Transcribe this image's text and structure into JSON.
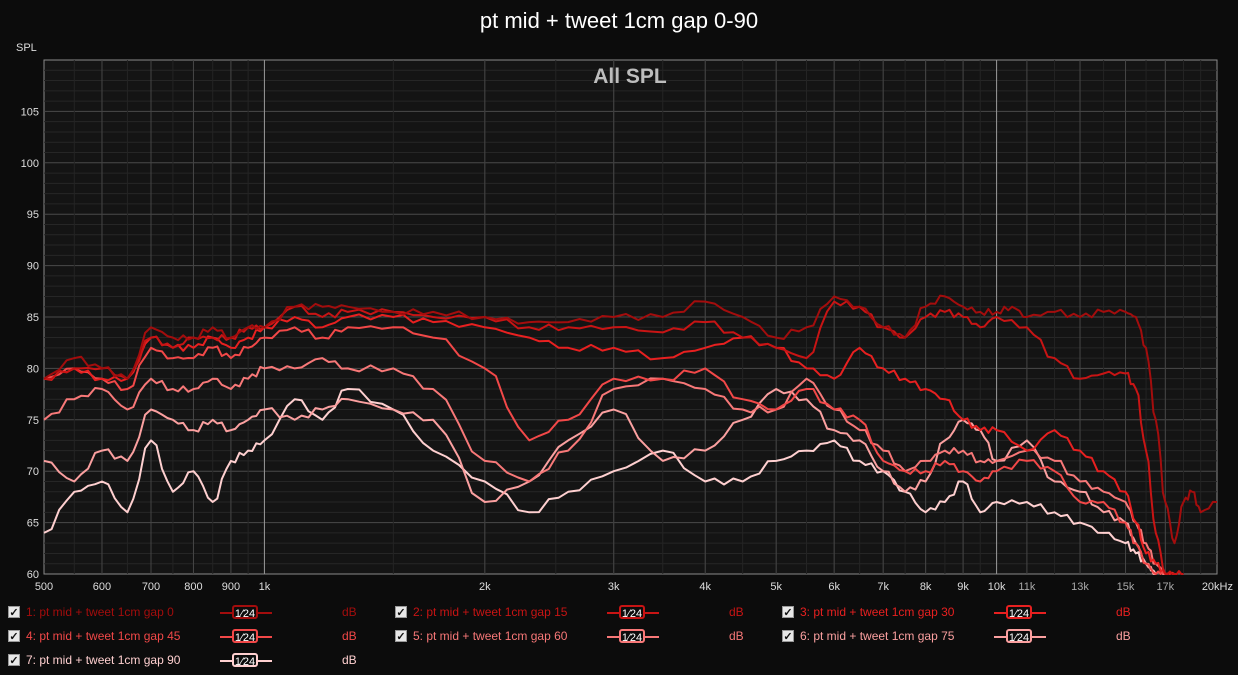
{
  "title": "pt mid + tweet 1cm gap 0-90",
  "y_axis_label": "SPL",
  "chart_data": {
    "type": "line",
    "title": "pt mid + tweet 1cm gap 0-90",
    "inner_title": "All SPL",
    "ylabel": "SPL",
    "x_scale": "log",
    "xlim": [
      500,
      20000
    ],
    "ylim": [
      60,
      110
    ],
    "y_ticks": [
      60,
      65,
      70,
      75,
      80,
      85,
      90,
      95,
      100,
      105
    ],
    "x_ticks": [
      {
        "v": 500,
        "label": "500"
      },
      {
        "v": 600,
        "label": "600"
      },
      {
        "v": 700,
        "label": "700"
      },
      {
        "v": 800,
        "label": "800"
      },
      {
        "v": 900,
        "label": "900"
      },
      {
        "v": 1000,
        "label": "1k"
      },
      {
        "v": 2000,
        "label": "2k"
      },
      {
        "v": 3000,
        "label": "3k"
      },
      {
        "v": 4000,
        "label": "4k"
      },
      {
        "v": 5000,
        "label": "5k"
      },
      {
        "v": 6000,
        "label": "6k"
      },
      {
        "v": 7000,
        "label": "7k"
      },
      {
        "v": 8000,
        "label": "8k"
      },
      {
        "v": 9000,
        "label": "9k"
      },
      {
        "v": 10000,
        "label": "10k"
      },
      {
        "v": 11000,
        "label": "11k"
      },
      {
        "v": 13000,
        "label": "13k"
      },
      {
        "v": 15000,
        "label": "15k"
      },
      {
        "v": 17000,
        "label": "17k"
      },
      {
        "v": 20000,
        "label": "20kHz"
      }
    ],
    "grid": true,
    "series": [
      {
        "name": "1: pt mid + tweet 1cm gap 0",
        "color": "#a30d0d",
        "x": [
          500,
          550,
          600,
          650,
          700,
          750,
          800,
          850,
          900,
          950,
          1000,
          1100,
          1200,
          1300,
          1500,
          1700,
          2000,
          2300,
          2600,
          3000,
          3500,
          4000,
          4500,
          5000,
          5500,
          6000,
          6500,
          7000,
          7500,
          8000,
          8500,
          9000,
          9500,
          10000,
          10500,
          11000,
          12000,
          13000,
          14000,
          15000,
          15500,
          16000,
          16500,
          17000,
          17500,
          18000,
          18500,
          19000,
          20000
        ],
        "y": [
          79,
          81,
          80,
          79,
          84,
          83,
          83,
          84,
          83,
          84,
          84,
          86,
          86,
          86,
          85.5,
          85.5,
          85,
          84.5,
          84.5,
          85,
          85,
          86.5,
          85,
          83,
          84,
          87,
          86,
          84,
          83,
          86,
          87,
          86,
          85.5,
          85.5,
          86,
          85,
          85.5,
          85,
          85.5,
          85.5,
          85,
          82,
          75,
          67,
          63,
          67,
          68,
          66,
          67
        ]
      },
      {
        "name": "2: pt mid + tweet 1cm gap 15",
        "color": "#c81414",
        "x": [
          500,
          550,
          600,
          650,
          700,
          750,
          800,
          850,
          900,
          950,
          1000,
          1100,
          1200,
          1300,
          1500,
          1700,
          2000,
          2300,
          2600,
          3000,
          3500,
          4000,
          4500,
          5000,
          5500,
          6000,
          6500,
          7000,
          7500,
          8000,
          8500,
          9000,
          9500,
          10000,
          11000,
          12000,
          13000,
          14000,
          15000,
          15500,
          16000,
          16500,
          17000,
          17500,
          18000
        ],
        "y": [
          79,
          80,
          80,
          79,
          83,
          82,
          83,
          83,
          83,
          84,
          84,
          86,
          85,
          85.5,
          85.5,
          85,
          85,
          84,
          84,
          84,
          83.5,
          84.5,
          83,
          82,
          81,
          86.5,
          86,
          84,
          83,
          85,
          85.5,
          85,
          84,
          85,
          84,
          81,
          79,
          79.5,
          79.5,
          78,
          72,
          64,
          60,
          60,
          60
        ]
      },
      {
        "name": "3: pt mid + tweet 1cm gap 30",
        "color": "#e82020",
        "x": [
          500,
          550,
          600,
          650,
          700,
          750,
          800,
          850,
          900,
          950,
          1000,
          1100,
          1200,
          1300,
          1500,
          1700,
          2000,
          2300,
          2600,
          3000,
          3500,
          4000,
          4500,
          5000,
          5500,
          6000,
          6500,
          7000,
          7500,
          8000,
          8500,
          9000,
          9500,
          10000,
          11000,
          12000,
          13000,
          14000,
          15000,
          15500,
          16000,
          16500,
          17000,
          17500
        ],
        "y": [
          79,
          80,
          79,
          79,
          83,
          82,
          82,
          83,
          82,
          83,
          84,
          85,
          84,
          85,
          85,
          84.5,
          84,
          83,
          82,
          82,
          81,
          82,
          83,
          82,
          80,
          79,
          82,
          80,
          79,
          78,
          77,
          75,
          74,
          74,
          72,
          74,
          72,
          70,
          68,
          65,
          62,
          61,
          60,
          60
        ]
      },
      {
        "name": "4: pt mid + tweet 1cm gap 45",
        "color": "#f24848",
        "x": [
          500,
          550,
          600,
          650,
          700,
          750,
          800,
          850,
          900,
          950,
          1000,
          1100,
          1200,
          1300,
          1500,
          1700,
          2000,
          2300,
          2600,
          3000,
          3500,
          4000,
          4500,
          5000,
          5500,
          6000,
          6500,
          7000,
          7500,
          8000,
          8500,
          9000,
          9500,
          10000,
          11000,
          12000,
          13000,
          14000,
          15000,
          15500,
          16000,
          16500,
          17000
        ],
        "y": [
          79,
          80,
          79,
          78,
          82,
          81,
          81,
          82,
          81,
          82,
          83,
          84,
          83,
          84,
          84,
          83,
          80,
          73,
          75,
          79,
          79,
          80,
          77,
          76,
          78,
          76,
          75,
          71,
          70,
          70,
          71,
          70,
          69,
          70,
          71,
          70,
          67,
          67,
          65,
          63,
          61,
          60,
          60
        ]
      },
      {
        "name": "5: pt mid + tweet 1cm gap 60",
        "color": "#f87878",
        "x": [
          500,
          550,
          600,
          650,
          700,
          750,
          800,
          850,
          900,
          950,
          1000,
          1100,
          1200,
          1300,
          1500,
          1700,
          2000,
          2300,
          2600,
          3000,
          3500,
          4000,
          4500,
          5000,
          5500,
          6000,
          6500,
          7000,
          7500,
          8000,
          8500,
          9000,
          9500,
          10000,
          11000,
          12000,
          13000,
          14000,
          15000,
          15500,
          16000,
          16500,
          17000
        ],
        "y": [
          75,
          77,
          78,
          76,
          79,
          78,
          78,
          79,
          78,
          79,
          80,
          80,
          81,
          80,
          80,
          78,
          71,
          69,
          72,
          78,
          79,
          78,
          76,
          76,
          79,
          76,
          74,
          72,
          70,
          71,
          72,
          72,
          71,
          71,
          72,
          71,
          69,
          68,
          67,
          65,
          63,
          61,
          60
        ]
      },
      {
        "name": "6: pt mid + tweet 1cm gap 75",
        "color": "#fba0a0",
        "x": [
          500,
          550,
          600,
          650,
          700,
          750,
          800,
          850,
          900,
          950,
          1000,
          1100,
          1200,
          1300,
          1500,
          1700,
          2000,
          2300,
          2600,
          3000,
          3500,
          4000,
          4500,
          5000,
          5500,
          6000,
          6500,
          7000,
          7500,
          8000,
          8500,
          9000,
          9500,
          10000,
          11000,
          12000,
          13000,
          14000,
          15000,
          15500,
          16000,
          16500
        ],
        "y": [
          71,
          69,
          72,
          71,
          76,
          75,
          74,
          75,
          74,
          75,
          76,
          75,
          76,
          77,
          76,
          75,
          67,
          69,
          73,
          76,
          71,
          72,
          75,
          78,
          77,
          74,
          73,
          70,
          68,
          69,
          73,
          75,
          74,
          71,
          73,
          69,
          68,
          66,
          65,
          63,
          61,
          60
        ]
      },
      {
        "name": "7: pt mid + tweet 1cm gap 90",
        "color": "#ffd0d0",
        "x": [
          500,
          550,
          600,
          650,
          700,
          750,
          800,
          850,
          900,
          950,
          1000,
          1100,
          1200,
          1300,
          1500,
          1700,
          2000,
          2300,
          2600,
          3000,
          3500,
          4000,
          4500,
          5000,
          5500,
          6000,
          6500,
          7000,
          7500,
          8000,
          8500,
          9000,
          9500,
          10000,
          11000,
          12000,
          13000,
          14000,
          15000,
          15500,
          16000,
          16500
        ],
        "y": [
          64,
          68,
          69,
          66,
          73,
          68,
          70,
          67,
          71,
          72,
          73,
          77,
          75,
          78,
          76,
          72,
          69,
          66,
          68,
          70,
          72,
          69,
          69,
          71,
          72,
          73,
          71,
          70,
          68,
          66,
          67,
          69,
          66,
          67,
          67,
          66,
          65,
          64,
          63,
          62,
          61,
          60
        ]
      }
    ]
  },
  "legend": [
    {
      "label": "1: pt mid + tweet 1cm gap 0",
      "checked": "✓",
      "smoothing": "1⁄24",
      "unit": "dB",
      "color": "#a30d0d"
    },
    {
      "label": "2: pt mid + tweet 1cm gap 15",
      "checked": "✓",
      "smoothing": "1⁄24",
      "unit": "dB",
      "color": "#c81414"
    },
    {
      "label": "3: pt mid + tweet 1cm gap 30",
      "checked": "✓",
      "smoothing": "1⁄24",
      "unit": "dB",
      "color": "#e82020"
    },
    {
      "label": "4: pt mid + tweet 1cm gap 45",
      "checked": "✓",
      "smoothing": "1⁄24",
      "unit": "dB",
      "color": "#f24848"
    },
    {
      "label": "5: pt mid + tweet 1cm gap 60",
      "checked": "✓",
      "smoothing": "1⁄24",
      "unit": "dB",
      "color": "#f87878"
    },
    {
      "label": "6: pt mid + tweet 1cm gap 75",
      "checked": "✓",
      "smoothing": "1⁄24",
      "unit": "dB",
      "color": "#fba0a0"
    },
    {
      "label": "7: pt mid + tweet 1cm gap 90",
      "checked": "✓",
      "smoothing": "1⁄24",
      "unit": "dB",
      "color": "#ffd0d0"
    }
  ]
}
